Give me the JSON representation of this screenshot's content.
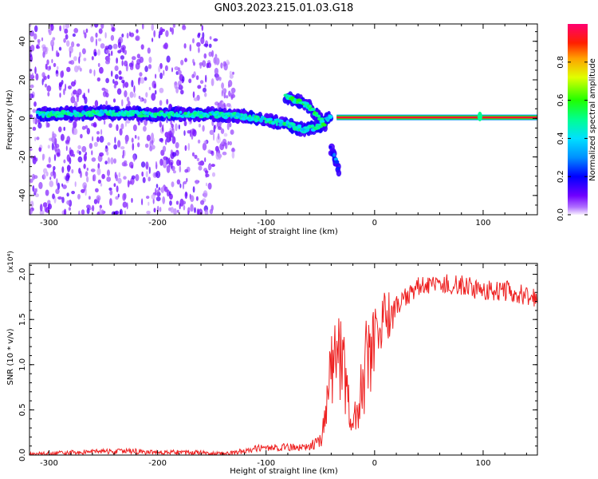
{
  "title": "GN03.2023.215.01.03.G18",
  "colors": {
    "snr_line": "#ee2020",
    "frame": "#000000",
    "background": "#ffffff"
  },
  "chart_data": [
    {
      "type": "heatmap",
      "title": "GN03.2023.215.01.03.G18",
      "xlabel": "Height of straight line (km)",
      "ylabel": "Frequency (Hz)",
      "xlim": [
        -318,
        150
      ],
      "ylim": [
        -50,
        49
      ],
      "xticks": [
        -300,
        -200,
        -100,
        0,
        100
      ],
      "xtick_labels": [
        "-300",
        "-200",
        "-100",
        "0",
        "100"
      ],
      "yticks": [
        -40,
        -20,
        0,
        20,
        40
      ],
      "ytick_labels": [
        "-40",
        "-20",
        "0",
        "20",
        "40"
      ],
      "grid": false,
      "colorbar": {
        "label": "Normalized spectral amplitude",
        "range": [
          0,
          1
        ],
        "ticks": [
          0.0,
          0.2,
          0.4,
          0.6,
          0.8
        ],
        "tick_labels": [
          "0.0",
          "0.2",
          "0.4",
          "0.6",
          "0.8"
        ],
        "colormap": "rainbow (purple-blue-cyan-green-yellow-orange-red)"
      },
      "features": [
        {
          "name": "noisy scatter",
          "x_range": [
            -318,
            -145
          ],
          "freq_range": [
            -50,
            49
          ],
          "amplitude": 0.05
        },
        {
          "name": "noisy scatter",
          "x_range": [
            -145,
            -130
          ],
          "freq_range": [
            -20,
            30
          ],
          "amplitude": 0.03
        },
        {
          "name": "main line",
          "x": [
            -310,
            -250,
            -200,
            -150,
            -120,
            -100,
            -80,
            -65,
            -50,
            -40
          ],
          "freq": [
            2,
            3,
            2,
            2,
            1,
            -1,
            -3,
            -6,
            -4,
            2
          ],
          "amplitude": 0.35
        },
        {
          "name": "upper branch",
          "x": [
            -82,
            -70,
            -58,
            -50,
            -45
          ],
          "freq": [
            11,
            9,
            5,
            0,
            -6
          ],
          "amplitude": 0.4
        },
        {
          "name": "lower branch",
          "x": [
            -40,
            -36,
            -33
          ],
          "freq": [
            -16,
            -21,
            -26
          ],
          "amplitude": 0.15
        },
        {
          "name": "carrier",
          "x_range": [
            -35,
            150
          ],
          "freq": 0.5,
          "amplitude": 0.95
        },
        {
          "name": "spike",
          "x": 97,
          "freq_range": [
            -3,
            5
          ],
          "amplitude": 0.5
        }
      ]
    },
    {
      "type": "line",
      "title": "",
      "xlabel": "Height of straight line (km)",
      "ylabel": "SNR (10 * v/v)",
      "y_multiplier": "(x10⁴)",
      "xlim": [
        -318,
        150
      ],
      "ylim": [
        0,
        2.12
      ],
      "xticks": [
        -300,
        -200,
        -100,
        0,
        100
      ],
      "xtick_labels": [
        "-300",
        "-200",
        "-100",
        "0",
        "100"
      ],
      "yticks": [
        0.0,
        0.5,
        1.0,
        1.5,
        2.0
      ],
      "ytick_labels": [
        "0.0",
        "0.5",
        "1.0",
        "1.5",
        "2.0"
      ],
      "grid": false,
      "series": [
        {
          "color": "#ee2020",
          "x": [
            -318,
            -300,
            -270,
            -250,
            -220,
            -200,
            -180,
            -160,
            -150,
            -140,
            -130,
            -120,
            -110,
            -100,
            -90,
            -80,
            -70,
            -60,
            -50,
            -45,
            -40,
            -35,
            -30,
            -25,
            -20,
            -15,
            -10,
            -5,
            0,
            5,
            10,
            15,
            20,
            25,
            30,
            40,
            50,
            60,
            70,
            80,
            90,
            100,
            110,
            120,
            130,
            140,
            150
          ],
          "y": [
            0.01,
            0.015,
            0.03,
            0.04,
            0.04,
            0.03,
            0.03,
            0.03,
            0.02,
            0.015,
            0.02,
            0.05,
            0.07,
            0.08,
            0.08,
            0.09,
            0.08,
            0.09,
            0.18,
            0.4,
            0.9,
            1.15,
            1.05,
            0.6,
            0.35,
            0.6,
            0.95,
            1.15,
            1.3,
            1.45,
            1.5,
            1.58,
            1.65,
            1.7,
            1.78,
            1.85,
            1.88,
            1.88,
            1.9,
            1.88,
            1.85,
            1.84,
            1.82,
            1.82,
            1.8,
            1.78,
            1.75
          ]
        }
      ]
    }
  ]
}
